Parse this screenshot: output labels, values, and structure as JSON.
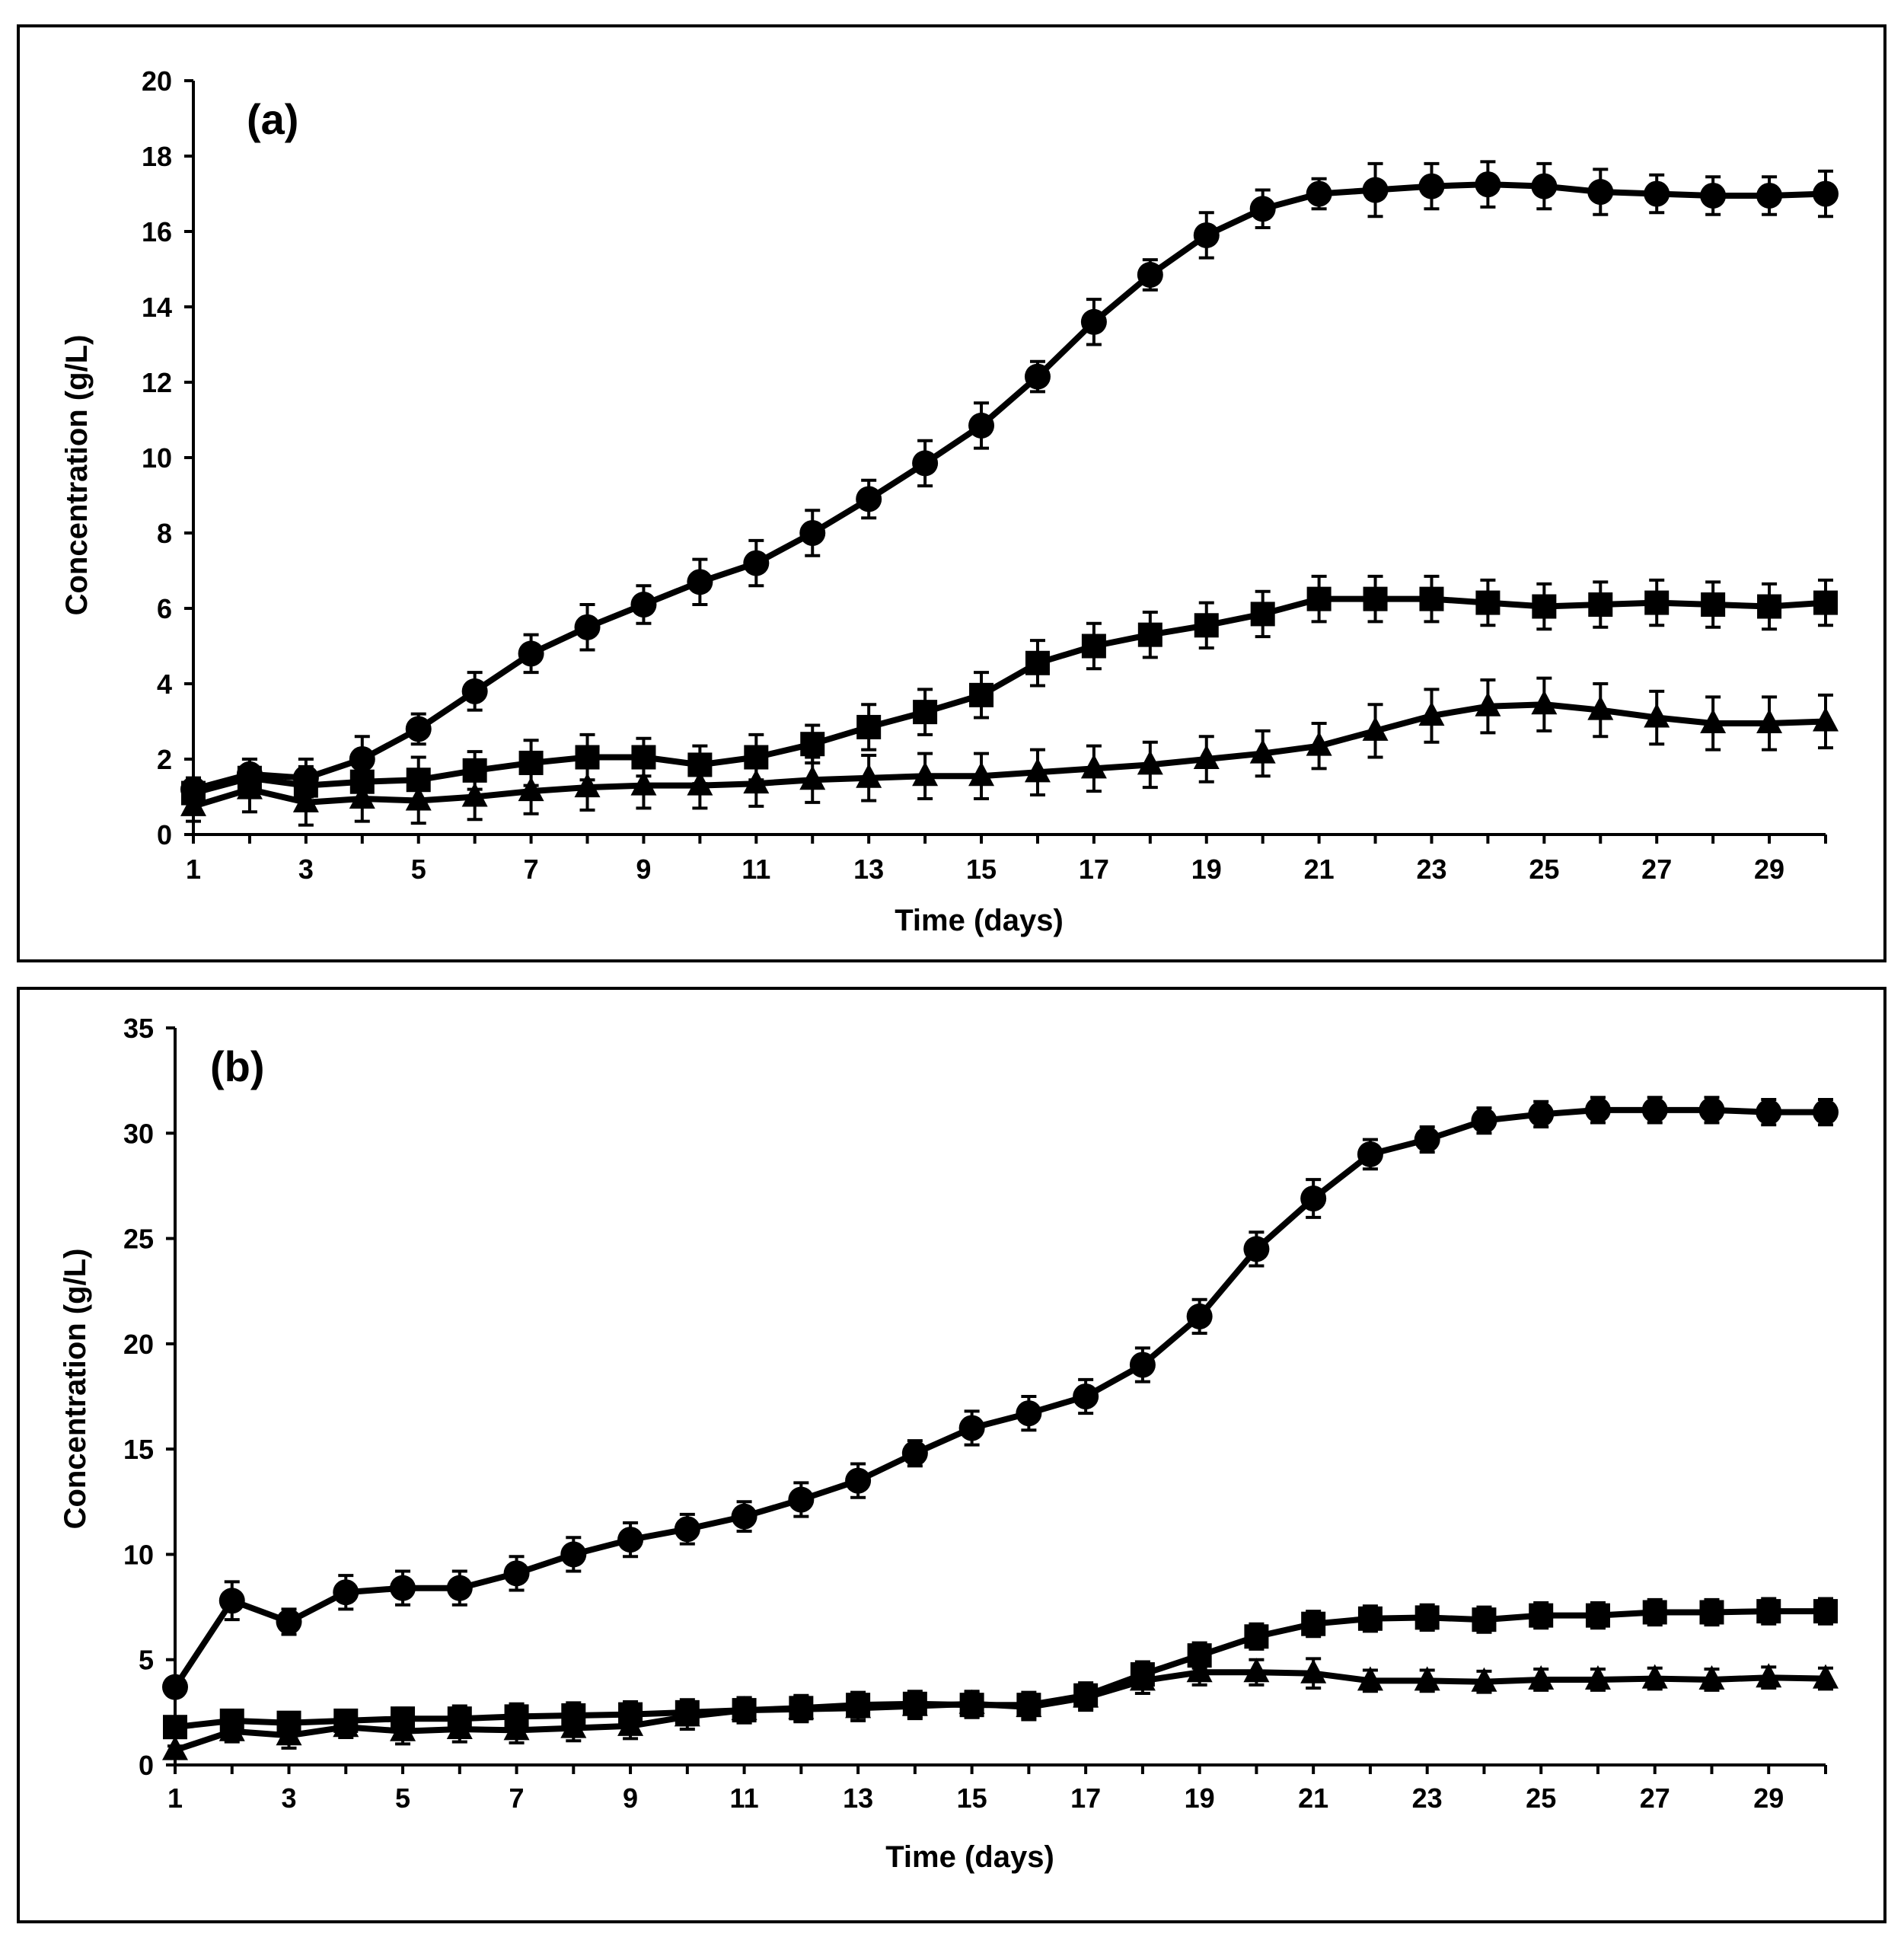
{
  "chart_data": [
    {
      "type": "line",
      "panel_label": "(a)",
      "xlabel": "Time (days)",
      "ylabel": "Concentration (g/L)",
      "xlim": [
        1,
        30
      ],
      "ylim": [
        0,
        20
      ],
      "xticks": [
        1,
        3,
        5,
        7,
        9,
        11,
        13,
        15,
        17,
        19,
        21,
        23,
        25,
        27,
        29
      ],
      "yticks": [
        0,
        2,
        4,
        6,
        8,
        10,
        12,
        14,
        16,
        18,
        20
      ],
      "x": [
        1,
        2,
        3,
        4,
        5,
        6,
        7,
        8,
        9,
        10,
        11,
        12,
        13,
        14,
        15,
        16,
        17,
        18,
        19,
        20,
        21,
        22,
        23,
        24,
        25,
        26,
        27,
        28,
        29,
        30
      ],
      "series": [
        {
          "name": "circle",
          "marker": "circle",
          "values": [
            1.2,
            1.6,
            1.5,
            2.0,
            2.8,
            3.8,
            4.8,
            5.5,
            6.1,
            6.7,
            7.2,
            8.0,
            8.9,
            9.85,
            10.85,
            12.15,
            13.6,
            14.85,
            15.9,
            16.6,
            17.0,
            17.1,
            17.2,
            17.25,
            17.2,
            17.05,
            17.0,
            16.95,
            16.95,
            17.0
          ],
          "errors": [
            0.3,
            0.4,
            0.5,
            0.6,
            0.4,
            0.5,
            0.5,
            0.6,
            0.5,
            0.6,
            0.6,
            0.6,
            0.5,
            0.6,
            0.6,
            0.4,
            0.6,
            0.4,
            0.6,
            0.5,
            0.4,
            0.7,
            0.6,
            0.6,
            0.6,
            0.6,
            0.5,
            0.5,
            0.5,
            0.6
          ]
        },
        {
          "name": "square",
          "marker": "square",
          "values": [
            1.1,
            1.5,
            1.3,
            1.4,
            1.45,
            1.7,
            1.9,
            2.05,
            2.05,
            1.85,
            2.05,
            2.4,
            2.85,
            3.25,
            3.7,
            4.55,
            5.0,
            5.3,
            5.55,
            5.85,
            6.25,
            6.25,
            6.25,
            6.15,
            6.05,
            6.1,
            6.15,
            6.1,
            6.05,
            6.15
          ],
          "errors": [
            0.4,
            0.5,
            0.5,
            0.5,
            0.6,
            0.5,
            0.6,
            0.6,
            0.5,
            0.5,
            0.6,
            0.5,
            0.6,
            0.6,
            0.6,
            0.6,
            0.6,
            0.6,
            0.6,
            0.6,
            0.6,
            0.6,
            0.6,
            0.6,
            0.6,
            0.6,
            0.6,
            0.6,
            0.6,
            0.6
          ]
        },
        {
          "name": "triangle",
          "marker": "triangle",
          "values": [
            0.75,
            1.2,
            0.85,
            0.95,
            0.9,
            1.0,
            1.15,
            1.25,
            1.3,
            1.3,
            1.35,
            1.45,
            1.5,
            1.55,
            1.55,
            1.65,
            1.75,
            1.85,
            2.0,
            2.15,
            2.35,
            2.75,
            3.15,
            3.4,
            3.45,
            3.3,
            3.1,
            2.95,
            2.95,
            3.0
          ],
          "errors": [
            0.4,
            0.6,
            0.6,
            0.6,
            0.6,
            0.6,
            0.6,
            0.6,
            0.6,
            0.6,
            0.6,
            0.6,
            0.6,
            0.6,
            0.6,
            0.6,
            0.6,
            0.6,
            0.6,
            0.6,
            0.6,
            0.7,
            0.7,
            0.7,
            0.7,
            0.7,
            0.7,
            0.7,
            0.7,
            0.7
          ]
        }
      ]
    },
    {
      "type": "line",
      "panel_label": "(b)",
      "xlabel": "Time (days)",
      "ylabel": "Concentration (g/L)",
      "xlim": [
        1,
        30
      ],
      "ylim": [
        0,
        35
      ],
      "xticks": [
        1,
        3,
        5,
        7,
        9,
        11,
        13,
        15,
        17,
        19,
        21,
        23,
        25,
        27,
        29
      ],
      "yticks": [
        0,
        5,
        10,
        15,
        20,
        25,
        30,
        35
      ],
      "x": [
        1,
        2,
        3,
        4,
        5,
        6,
        7,
        8,
        9,
        10,
        11,
        12,
        13,
        14,
        15,
        16,
        17,
        18,
        19,
        20,
        21,
        22,
        23,
        24,
        25,
        26,
        27,
        28,
        29,
        30
      ],
      "series": [
        {
          "name": "circle",
          "marker": "circle",
          "values": [
            3.7,
            7.8,
            6.8,
            8.2,
            8.4,
            8.4,
            9.1,
            10.0,
            10.7,
            11.2,
            11.8,
            12.6,
            13.5,
            14.8,
            16.0,
            16.7,
            17.5,
            19.0,
            21.3,
            24.5,
            26.9,
            29.0,
            29.7,
            30.6,
            30.9,
            31.1,
            31.1,
            31.1,
            31.0,
            31.0
          ],
          "errors": [
            0.4,
            0.9,
            0.6,
            0.8,
            0.8,
            0.8,
            0.8,
            0.8,
            0.8,
            0.7,
            0.7,
            0.8,
            0.8,
            0.6,
            0.8,
            0.8,
            0.8,
            0.8,
            0.8,
            0.8,
            0.9,
            0.7,
            0.6,
            0.6,
            0.6,
            0.6,
            0.6,
            0.6,
            0.6,
            0.6
          ]
        },
        {
          "name": "square",
          "marker": "square",
          "values": [
            1.8,
            2.1,
            2.0,
            2.1,
            2.2,
            2.2,
            2.3,
            2.35,
            2.4,
            2.5,
            2.6,
            2.7,
            2.85,
            2.9,
            2.85,
            2.85,
            3.3,
            4.3,
            5.2,
            6.1,
            6.7,
            6.95,
            7.0,
            6.9,
            7.1,
            7.1,
            7.25,
            7.25,
            7.3,
            7.3
          ],
          "errors": [
            0.4,
            0.4,
            0.4,
            0.5,
            0.5,
            0.6,
            0.6,
            0.6,
            0.6,
            0.6,
            0.6,
            0.6,
            0.6,
            0.6,
            0.6,
            0.6,
            0.6,
            0.6,
            0.6,
            0.6,
            0.6,
            0.6,
            0.6,
            0.6,
            0.6,
            0.6,
            0.6,
            0.6,
            0.6,
            0.6
          ]
        },
        {
          "name": "triangle",
          "marker": "triangle",
          "values": [
            0.7,
            1.6,
            1.4,
            1.8,
            1.6,
            1.7,
            1.65,
            1.75,
            1.85,
            2.3,
            2.6,
            2.65,
            2.7,
            2.8,
            2.9,
            2.75,
            3.2,
            4.0,
            4.4,
            4.4,
            4.35,
            4.0,
            4.0,
            3.95,
            4.05,
            4.05,
            4.1,
            4.05,
            4.15,
            4.1
          ],
          "errors": [
            0.2,
            0.5,
            0.6,
            0.5,
            0.6,
            0.6,
            0.6,
            0.6,
            0.6,
            0.6,
            0.6,
            0.6,
            0.6,
            0.6,
            0.6,
            0.6,
            0.6,
            0.6,
            0.6,
            0.6,
            0.7,
            0.5,
            0.5,
            0.5,
            0.5,
            0.5,
            0.5,
            0.5,
            0.5,
            0.5
          ]
        }
      ]
    }
  ]
}
